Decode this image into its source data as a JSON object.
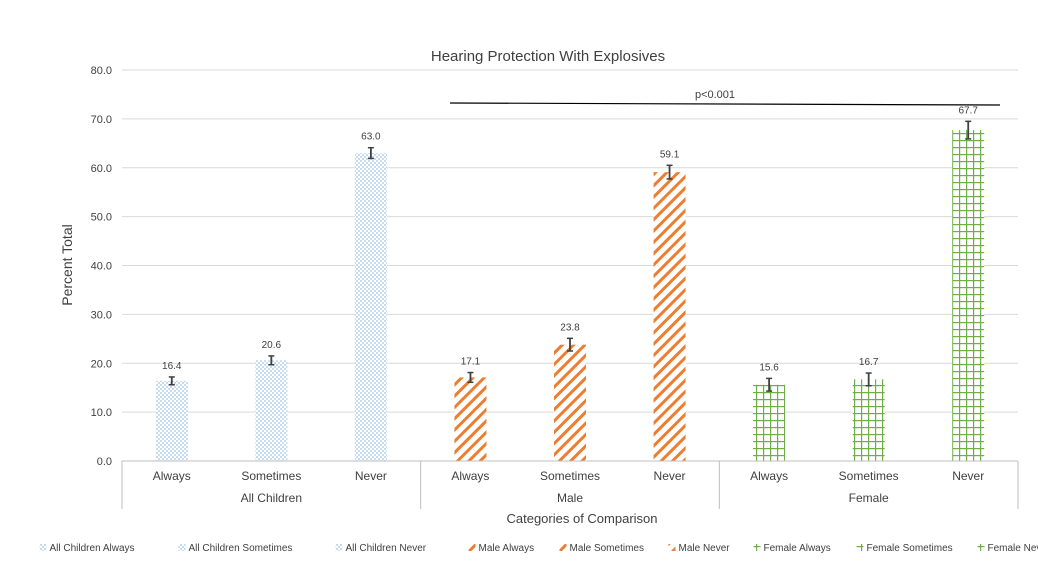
{
  "chart_data": {
    "type": "bar",
    "title": "Hearing Protection With Explosives",
    "xlabel": "Categories of Comparison",
    "ylabel": "Percent Total",
    "ylim": [
      0,
      80
    ],
    "yticks": [
      "0.0",
      "10.0",
      "20.0",
      "30.0",
      "40.0",
      "50.0",
      "60.0",
      "70.0",
      "80.0"
    ],
    "grid": true,
    "legend_position": "bottom",
    "significance_label": "p<0.001",
    "groups": [
      {
        "label": "All Children",
        "color": "#9dc3e6",
        "pattern": "dots",
        "bars": [
          {
            "category": "Always",
            "value": 16.4,
            "value_label": "16.4",
            "error": 0.8,
            "legend": "All Children Always"
          },
          {
            "category": "Sometimes",
            "value": 20.6,
            "value_label": "20.6",
            "error": 0.9,
            "legend": "All Children Sometimes"
          },
          {
            "category": "Never",
            "value": 63.0,
            "value_label": "63.0",
            "error": 1.1,
            "legend": "All Children Never"
          }
        ]
      },
      {
        "label": "Male",
        "color": "#ed7d31",
        "pattern": "diagonal",
        "bars": [
          {
            "category": "Always",
            "value": 17.1,
            "value_label": "17.1",
            "error": 1.0,
            "legend": "Male Always"
          },
          {
            "category": "Sometimes",
            "value": 23.8,
            "value_label": "23.8",
            "error": 1.3,
            "legend": "Male Sometimes"
          },
          {
            "category": "Never",
            "value": 59.1,
            "value_label": "59.1",
            "error": 1.4,
            "legend": "Male Never"
          }
        ]
      },
      {
        "label": "Female",
        "color": "#70ad47",
        "pattern": "grid",
        "bars": [
          {
            "category": "Always",
            "value": 15.6,
            "value_label": "15.6",
            "error": 1.3,
            "legend": "Female Always"
          },
          {
            "category": "Sometimes",
            "value": 16.7,
            "value_label": "16.7",
            "error": 1.3,
            "legend": "Female Sometimes"
          },
          {
            "category": "Never",
            "value": 67.7,
            "value_label": "67.7",
            "error": 1.8,
            "legend": "Female Never"
          }
        ]
      }
    ]
  }
}
